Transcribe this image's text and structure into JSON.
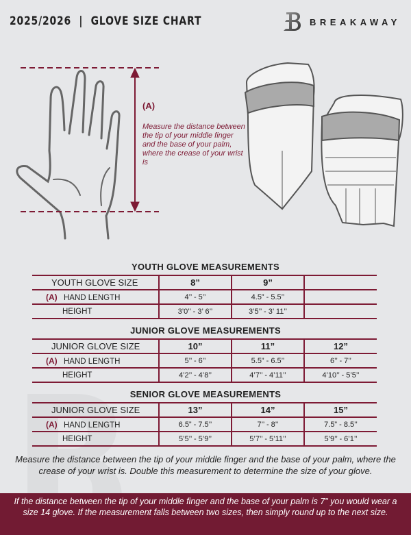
{
  "header": {
    "title": "2025/2026  |  GLOVE SIZE CHART",
    "brand": "BREAKAWAY"
  },
  "colors": {
    "accent": "#7d1a34",
    "background": "#e6e7e9",
    "band": "#721b33"
  },
  "measure": {
    "label": "(A)",
    "description": "Measure the distance between the tip of your middle finger and the base of your palm, where the crease of your wrist is"
  },
  "tables": [
    {
      "title": "YOUTH GLOVE MEASUREMENTS",
      "size_label": "YOUTH GLOVE SIZE",
      "sizes": [
        "8”",
        "9”",
        ""
      ],
      "hand_marker": "(A)",
      "hand_label": "HAND LENGTH",
      "hand": [
        "4’’ - 5’’",
        "4.5” - 5.5’’",
        ""
      ],
      "height_label": "HEIGHT",
      "height": [
        "3’0’’ - 3’ 6’’",
        "3’5’’ - 3’ 11’’",
        ""
      ]
    },
    {
      "title": "JUNIOR GLOVE MEASUREMENTS",
      "size_label": "JUNIOR GLOVE SIZE",
      "sizes": [
        "10”",
        "11”",
        "12”"
      ],
      "hand_marker": "(A)",
      "hand_label": "HAND LENGTH",
      "hand": [
        "5’’ - 6’’",
        "5.5” - 6.5’’",
        "6’’ - 7’’"
      ],
      "height_label": "HEIGHT",
      "height": [
        "4’2’’ - 4’8’’",
        "4’7’’ - 4’11’’",
        "4’10’’ - 5’5’’"
      ]
    },
    {
      "title": "SENIOR GLOVE MEASUREMENTS",
      "size_label": "JUNIOR GLOVE SIZE",
      "sizes": [
        "13”",
        "14”",
        "15”"
      ],
      "hand_marker": "(A)",
      "hand_label": "HAND LENGTH",
      "hand": [
        "6.5” - 7.5’’",
        "7’’ - 8’’",
        "7.5” - 8.5’’"
      ],
      "height_label": "HEIGHT",
      "height": [
        "5’5’’ - 5’9’’",
        "5’7’’ - 5’11’’",
        "5’9’’ - 6’1’’"
      ]
    }
  ],
  "note": "Measure the distance between the tip of your middle finger and the base of your palm, where the crease of your wrist is. Double this measurement to determine the size of your glove.",
  "example": "If the distance between the tip of your middle finger and the base of your palm is 7\" you would wear a size 14 glove. If the measurement falls between two sizes, then simply round up to the next size."
}
